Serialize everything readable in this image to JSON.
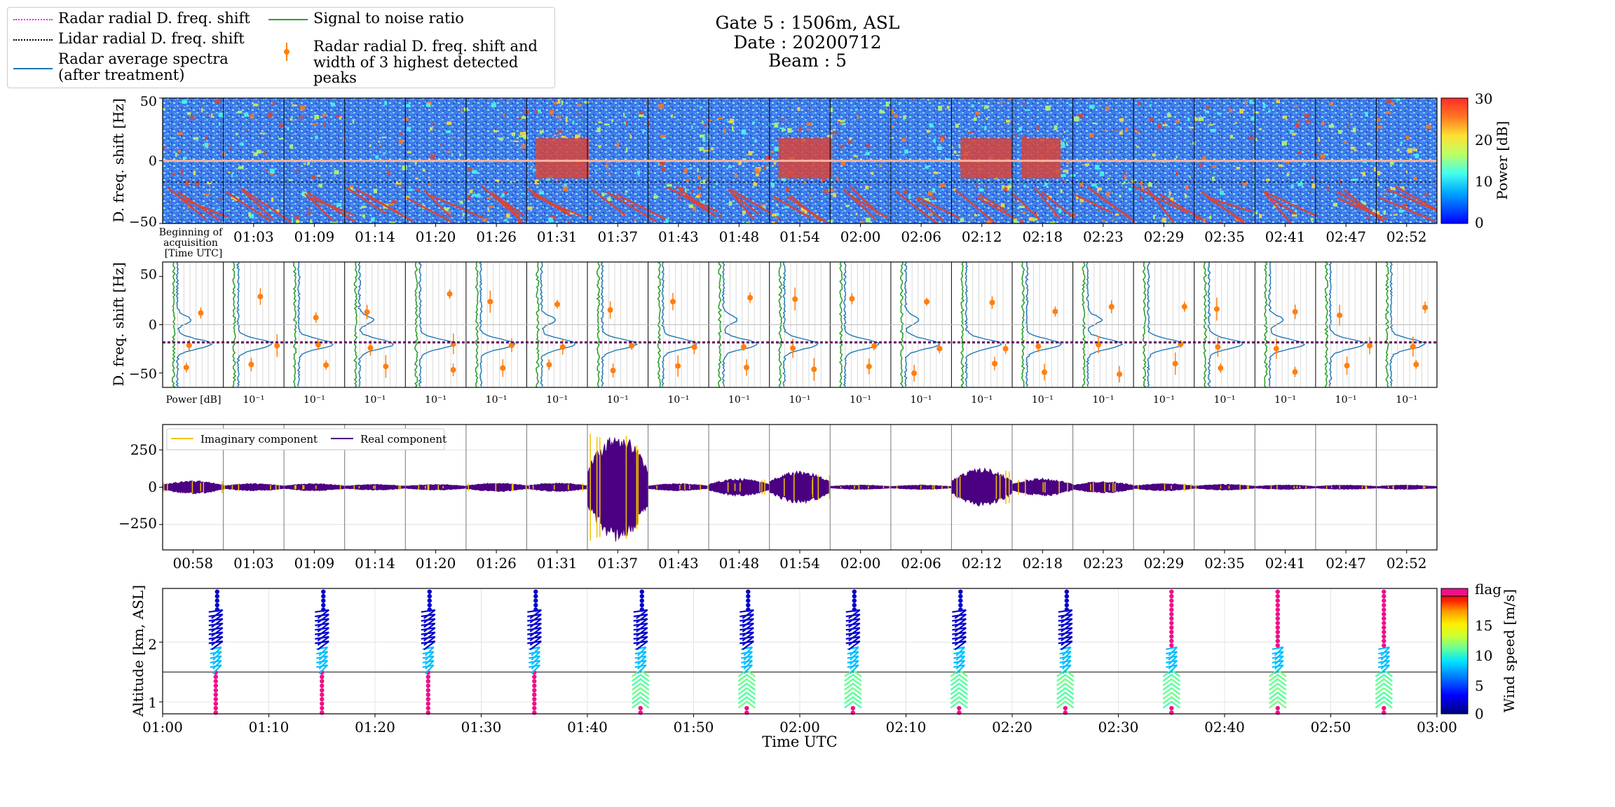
{
  "header": {
    "gate": "Gate 5 : 1506m, ASL",
    "date": "Date : 20200712",
    "beam": "Beam : 5"
  },
  "legend": {
    "radar_shift": "Radar radial D. freq. shift",
    "lidar_shift": "Lidar radial D. freq. shift",
    "radar_spectra_1": "Radar average spectra",
    "radar_spectra_2": "(after treatment)",
    "snr": "Signal to noise ratio",
    "peaks_1": "Radar radial D. freq. shift and",
    "peaks_2": "width of 3 highest detected peaks"
  },
  "colors": {
    "radar_shift": "#ff00ff",
    "lidar_shift": "#000000",
    "spectra": "#1f77b4",
    "snr": "#2ca02c",
    "peaks": "#ff7f0e",
    "imaginary": "#f5c400",
    "real": "#4b0082",
    "flag": "#ee1188"
  },
  "chart_data": [
    {
      "type": "heatmap",
      "ylabel": "D. freq. shift [Hz]",
      "yticks": [
        "50",
        "0",
        "−50"
      ],
      "ylim": [
        -50,
        50
      ],
      "start_label": [
        "Beginning of",
        "acquisition",
        "[Time UTC]"
      ],
      "xticks": [
        "01:03",
        "01:09",
        "01:14",
        "01:20",
        "01:26",
        "01:31",
        "01:37",
        "01:43",
        "01:48",
        "01:54",
        "02:00",
        "02:06",
        "02:12",
        "02:18",
        "02:23",
        "02:29",
        "02:35",
        "02:41",
        "02:47",
        "02:52"
      ],
      "colorbar": {
        "label": "Power [dB]",
        "ticks": [
          "30",
          "20",
          "10",
          "0"
        ],
        "range": [
          0,
          30
        ]
      },
      "segments": 21
    },
    {
      "type": "line",
      "ylabel": "D. freq. shift [Hz]",
      "yticks": [
        "50",
        "0",
        "−50"
      ],
      "ylim": [
        -65,
        65
      ],
      "xlabel_first": "Power [dB]",
      "xtick_label": "10⁻¹",
      "radar_shift_hz": -19,
      "lidar_shift_hz": -18,
      "segments": 21
    },
    {
      "type": "line",
      "yticks": [
        "250",
        "0",
        "−250"
      ],
      "ylim": [
        -420,
        420
      ],
      "legend": [
        "Imaginary component",
        "Real component"
      ],
      "xticks": [
        "00:58",
        "01:03",
        "01:09",
        "01:14",
        "01:20",
        "01:26",
        "01:31",
        "01:37",
        "01:43",
        "01:48",
        "01:54",
        "02:00",
        "02:06",
        "02:12",
        "02:18",
        "02:23",
        "02:29",
        "02:35",
        "02:41",
        "02:47",
        "02:52"
      ],
      "amplitudes": [
        45,
        25,
        25,
        20,
        20,
        30,
        30,
        370,
        25,
        60,
        110,
        15,
        15,
        130,
        60,
        40,
        25,
        20,
        15,
        15,
        15
      ]
    },
    {
      "type": "scatter",
      "ylabel": "Altitude [km, ASL]",
      "xlabel": "Time UTC",
      "yticks": [
        "2",
        "1"
      ],
      "ylim": [
        0.8,
        2.9
      ],
      "xticks": [
        "01:00",
        "01:10",
        "01:20",
        "01:30",
        "01:40",
        "01:50",
        "02:00",
        "02:10",
        "02:20",
        "02:30",
        "02:40",
        "02:50",
        "03:00"
      ],
      "xlim_minutes": [
        0,
        120
      ],
      "gate_altitude_km": 1.5,
      "profile_times_minutes": [
        5,
        15,
        25,
        35,
        45,
        55,
        65,
        75,
        85,
        95,
        105,
        115
      ],
      "colorbar": {
        "label": "Wind speed [m/s]",
        "top_label": "flag",
        "ticks": [
          "15",
          "10",
          "5",
          "0"
        ],
        "range": [
          0,
          20
        ]
      }
    }
  ]
}
